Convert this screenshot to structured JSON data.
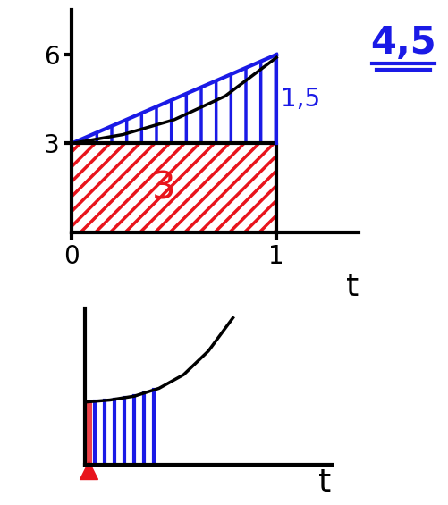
{
  "chart_data": [
    {
      "type": "line",
      "xlabel": "t",
      "x": [
        0,
        0.25,
        0.5,
        0.75,
        1
      ],
      "values": [
        3,
        3.3,
        3.8,
        4.6,
        5.9
      ],
      "color": "#000000",
      "xlim": [
        0,
        1.4
      ],
      "ylim": [
        0,
        7.5
      ],
      "xticks": [
        0,
        1
      ],
      "yticks": [
        3,
        6
      ],
      "rectangle": {
        "x": [
          0,
          1
        ],
        "height": 3,
        "color": "#e8141c",
        "label": "3"
      },
      "trapezoid": {
        "x": [
          0,
          1
        ],
        "values": [
          3,
          6
        ],
        "color": "#1a1ae6",
        "label": "1,5"
      },
      "annotations": [
        {
          "text": "4,5",
          "color": "#1a1ae6"
        }
      ]
    },
    {
      "type": "line",
      "xlabel": "t",
      "tick_labels": false,
      "x": [
        0,
        0.1,
        0.2,
        0.3,
        0.4,
        0.5,
        0.6
      ],
      "values": [
        3.2,
        3.3,
        3.5,
        3.9,
        4.6,
        5.8,
        7.5
      ],
      "color": "#000000",
      "xlim": [
        0,
        1
      ],
      "ylim": [
        0,
        8
      ],
      "strips": {
        "x": [
          0.04,
          0.08,
          0.12,
          0.16,
          0.2,
          0.24,
          0.28
        ],
        "color": "#1a1ae6"
      },
      "band": {
        "x": [
          0,
          0.03
        ],
        "color": "#e8141c"
      }
    }
  ]
}
